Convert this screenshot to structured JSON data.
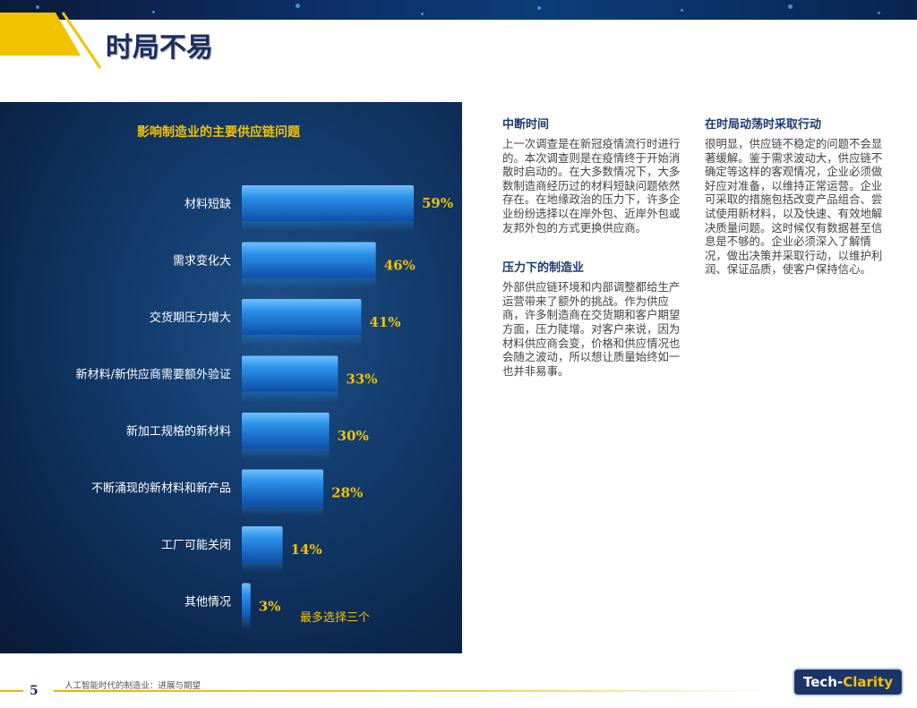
{
  "page": {
    "title": "时局不易",
    "page_number": "5",
    "footer": "人工智能时代的制造业：进展与期望"
  },
  "logo": {
    "part1": "Tech-",
    "part2": "Clarity"
  },
  "colors": {
    "gold": "#f2c200",
    "navy": "#1b2e5c",
    "bar": "#2a8fe8"
  },
  "chart_data": {
    "type": "bar",
    "orientation": "horizontal",
    "title": "影响制造业的主要供应链问题",
    "categories": [
      "材料短缺",
      "需求变化大",
      "交货期压力增大",
      "新材料/新供应商需要额外验证",
      "新加工规格的新材料",
      "不断涌现的新材料和新产品",
      "工厂可能关闭",
      "其他情况"
    ],
    "values": [
      59,
      46,
      41,
      33,
      30,
      28,
      14,
      3
    ],
    "value_labels": [
      "59%",
      "46%",
      "41%",
      "33%",
      "30%",
      "28%",
      "14%",
      "3%"
    ],
    "note": "最多选择三个",
    "xlim": [
      0,
      100
    ]
  },
  "sections": [
    {
      "heading": "中断时间",
      "body": "上一次调查是在新冠疫情流行时进行的。本次调查则是在疫情终于开始消散时启动的。在大多数情况下，大多数制造商经历过的材料短缺问题依然存在。在地缘政治的压力下，许多企业纷纷选择以在岸外包、近岸外包或友邦外包的方式更换供应商。"
    },
    {
      "heading": "压力下的制造业",
      "body": "外部供应链环境和内部调整都给生产运营带来了额外的挑战。作为供应商，许多制造商在交货期和客户期望方面，压力陡增。对客户来说，因为材料供应商会变，价格和供应情况也会随之波动，所以想让质量始终如一也并非易事。"
    },
    {
      "heading": "在时局动荡时采取行动",
      "body": "很明显，供应链不稳定的问题不会显著缓解。鉴于需求波动大，供应链不确定等这样的客观情况，企业必须做好应对准备，以维持正常运营。企业可采取的措施包括改变产品组合、尝试使用新材料，以及快速、有效地解决质量问题。这时候仅有数据甚至信息是不够的。企业必须深入了解情况，做出决策并采取行动，以维护利润、保证品质，使客户保持信心。"
    }
  ]
}
